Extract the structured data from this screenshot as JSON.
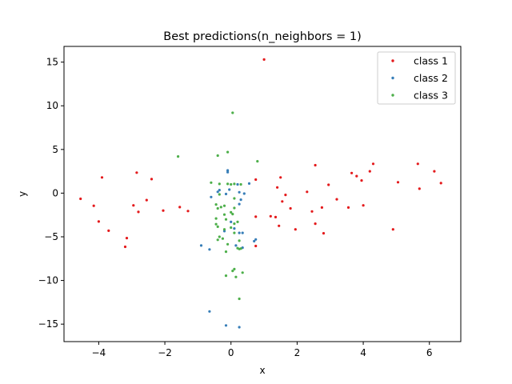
{
  "chart_data": {
    "type": "scatter",
    "title": "Best predictions(n_neighbors = 1)",
    "xlabel": "x",
    "ylabel": "y",
    "xlim": [
      -5.05,
      6.95
    ],
    "ylim": [
      -17.0,
      16.8
    ],
    "xticks": [
      -4,
      -2,
      0,
      2,
      4,
      6
    ],
    "yticks": [
      -15,
      -10,
      -5,
      0,
      5,
      10,
      15
    ],
    "grid": false,
    "legend_position": "top-right",
    "series": [
      {
        "name": "class 1",
        "color": "#e41a1c",
        "points": [
          [
            1.0,
            15.3
          ],
          [
            -4.55,
            -0.65
          ],
          [
            -4.15,
            -1.45
          ],
          [
            -4.0,
            -3.25
          ],
          [
            -3.9,
            1.8
          ],
          [
            -3.7,
            -4.3
          ],
          [
            -3.15,
            -5.15
          ],
          [
            -3.2,
            -6.15
          ],
          [
            -2.95,
            -1.4
          ],
          [
            -2.85,
            2.35
          ],
          [
            -2.8,
            -2.15
          ],
          [
            -2.55,
            -0.8
          ],
          [
            -2.4,
            1.6
          ],
          [
            -2.05,
            -2.0
          ],
          [
            -1.55,
            -1.6
          ],
          [
            -1.3,
            -2.05
          ],
          [
            0.75,
            1.55
          ],
          [
            0.75,
            -2.7
          ],
          [
            0.75,
            -6.05
          ],
          [
            1.2,
            -2.65
          ],
          [
            1.35,
            -2.75
          ],
          [
            1.4,
            0.65
          ],
          [
            1.45,
            -3.75
          ],
          [
            1.5,
            1.8
          ],
          [
            1.55,
            -0.95
          ],
          [
            1.65,
            -0.2
          ],
          [
            1.8,
            -1.75
          ],
          [
            1.95,
            -4.15
          ],
          [
            2.3,
            0.15
          ],
          [
            2.45,
            -2.1
          ],
          [
            2.55,
            3.2
          ],
          [
            2.55,
            -3.5
          ],
          [
            2.75,
            -1.65
          ],
          [
            2.8,
            -4.6
          ],
          [
            2.95,
            0.95
          ],
          [
            3.2,
            -0.7
          ],
          [
            3.55,
            -1.65
          ],
          [
            3.65,
            2.3
          ],
          [
            3.8,
            1.95
          ],
          [
            3.95,
            1.45
          ],
          [
            4.0,
            -1.4
          ],
          [
            4.2,
            2.5
          ],
          [
            4.3,
            3.35
          ],
          [
            4.9,
            -4.15
          ],
          [
            5.05,
            1.25
          ],
          [
            5.65,
            3.35
          ],
          [
            5.7,
            0.5
          ],
          [
            6.15,
            2.5
          ],
          [
            6.35,
            1.15
          ]
        ]
      },
      {
        "name": "class 2",
        "color": "#377eb8",
        "points": [
          [
            -0.65,
            -13.55
          ],
          [
            -0.9,
            -6.0
          ],
          [
            -0.65,
            -6.45
          ],
          [
            -0.6,
            -0.45
          ],
          [
            -0.4,
            0.15
          ],
          [
            -0.35,
            0.35
          ],
          [
            -0.2,
            -4.35
          ],
          [
            -0.15,
            -0.1
          ],
          [
            -0.1,
            2.6
          ],
          [
            -0.1,
            2.4
          ],
          [
            -0.05,
            0.4
          ],
          [
            0.0,
            -3.3
          ],
          [
            0.1,
            -4.05
          ],
          [
            0.15,
            -6.0
          ],
          [
            0.2,
            1.0
          ],
          [
            0.25,
            0.1
          ],
          [
            0.25,
            -1.25
          ],
          [
            0.25,
            -4.55
          ],
          [
            0.3,
            -0.75
          ],
          [
            0.35,
            -4.55
          ],
          [
            0.35,
            -6.25
          ],
          [
            0.4,
            -0.05
          ],
          [
            0.55,
            1.1
          ],
          [
            0.7,
            -5.5
          ],
          [
            0.75,
            -5.3
          ],
          [
            -0.15,
            -15.15
          ],
          [
            0.25,
            -15.35
          ]
        ]
      },
      {
        "name": "class 3",
        "color": "#4daf4a",
        "points": [
          [
            0.05,
            9.2
          ],
          [
            -0.1,
            4.7
          ],
          [
            -0.4,
            4.3
          ],
          [
            -1.6,
            4.2
          ],
          [
            0.8,
            3.65
          ],
          [
            -0.6,
            1.2
          ],
          [
            -0.35,
            1.05
          ],
          [
            -0.1,
            1.05
          ],
          [
            0.1,
            1.05
          ],
          [
            0.3,
            1.0
          ],
          [
            -0.35,
            -0.15
          ],
          [
            -0.45,
            -1.3
          ],
          [
            -0.2,
            -1.45
          ],
          [
            -0.3,
            -1.6
          ],
          [
            -0.4,
            -1.75
          ],
          [
            0.1,
            -1.7
          ],
          [
            0.0,
            -2.2
          ],
          [
            -0.2,
            -2.45
          ],
          [
            0.05,
            -2.4
          ],
          [
            -0.45,
            -2.9
          ],
          [
            -0.15,
            -3.0
          ],
          [
            0.2,
            -3.3
          ],
          [
            0.1,
            -3.5
          ],
          [
            -0.45,
            -3.55
          ],
          [
            -0.4,
            -3.85
          ],
          [
            0.0,
            -3.95
          ],
          [
            -0.2,
            -4.15
          ],
          [
            0.1,
            -4.55
          ],
          [
            -0.35,
            -5.0
          ],
          [
            -0.25,
            -5.2
          ],
          [
            -0.4,
            -5.35
          ],
          [
            0.25,
            -5.45
          ],
          [
            -0.1,
            -5.85
          ],
          [
            0.2,
            -6.3
          ],
          [
            0.25,
            -6.4
          ],
          [
            0.3,
            -6.35
          ],
          [
            -0.15,
            -6.7
          ],
          [
            0.1,
            -8.7
          ],
          [
            0.05,
            -8.9
          ],
          [
            -0.15,
            -9.45
          ],
          [
            0.15,
            -9.6
          ],
          [
            0.25,
            -12.1
          ],
          [
            0.35,
            -9.1
          ],
          [
            0.0,
            1.0
          ],
          [
            0.1,
            -0.6
          ]
        ]
      }
    ]
  }
}
